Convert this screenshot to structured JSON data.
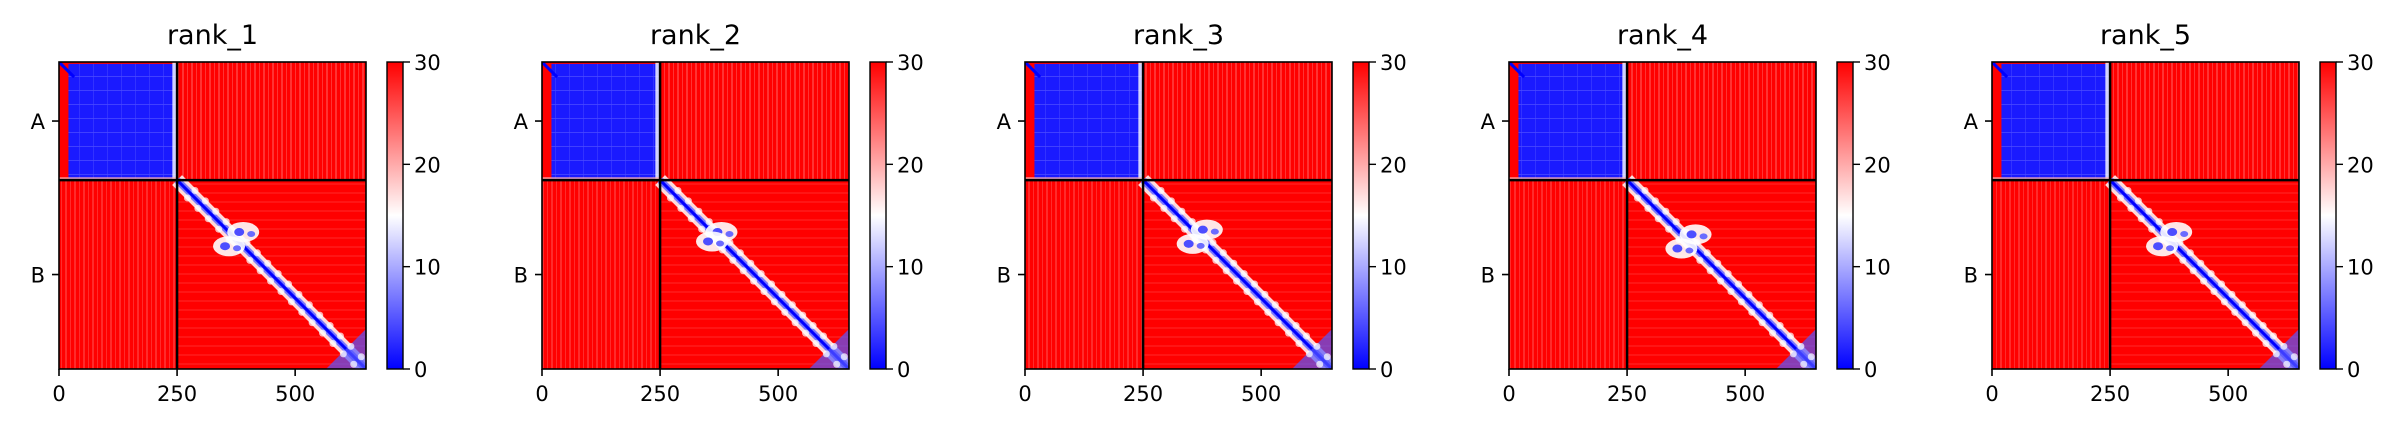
{
  "chart_data": {
    "type": "heatmap",
    "colormap": {
      "name": "bwr",
      "low": "#0000ff",
      "mid": "#ffffff",
      "high": "#ff0000"
    },
    "clim": [
      0,
      30
    ],
    "colorbar_ticks": [
      "0",
      "10",
      "20",
      "30"
    ],
    "x_ticks": [
      0,
      250,
      500
    ],
    "x_tick_labels": [
      "0",
      "250",
      "500"
    ],
    "xlim": [
      0,
      650
    ],
    "chain_boundary": 250,
    "chains": [
      "A",
      "B"
    ],
    "chain_lengths": [
      250,
      400
    ],
    "panels": [
      {
        "title": "rank_1",
        "blob": [
          390,
          360
        ]
      },
      {
        "title": "rank_2",
        "blob": [
          380,
          360
        ]
      },
      {
        "title": "rank_3",
        "blob": [
          385,
          355
        ]
      },
      {
        "title": "rank_4",
        "blob": [
          395,
          365
        ]
      },
      {
        "title": "rank_5",
        "blob": [
          390,
          360
        ]
      }
    ]
  }
}
